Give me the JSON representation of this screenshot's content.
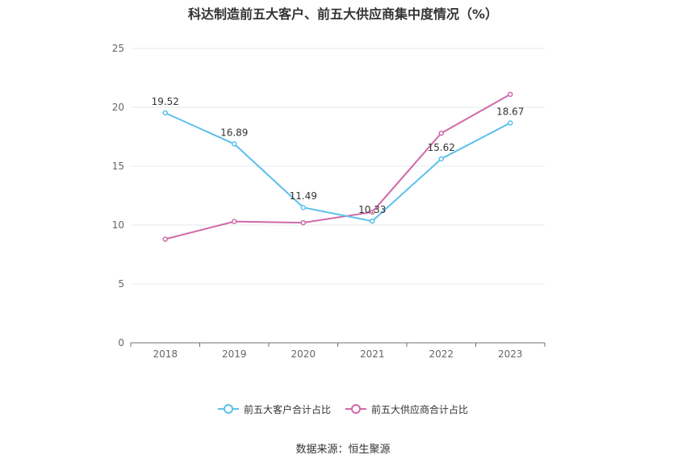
{
  "chart_data": {
    "type": "line",
    "title": "科达制造前五大客户、前五大供应商集中度情况（%）",
    "categories": [
      "2018",
      "2019",
      "2020",
      "2021",
      "2022",
      "2023"
    ],
    "ylim": [
      0,
      25
    ],
    "yticks": [
      0,
      5,
      10,
      15,
      20,
      25
    ],
    "grid": true,
    "legend_position": "bottom",
    "series": [
      {
        "name": "前五大客户合计占比",
        "color": "#5bc0eb",
        "values": [
          19.52,
          16.89,
          11.49,
          10.33,
          15.62,
          18.67
        ],
        "labels": [
          "19.52",
          "16.89",
          "11.49",
          "10.33",
          "15.62",
          "18.67"
        ]
      },
      {
        "name": "前五大供应商合计占比",
        "color": "#d069a8",
        "values": [
          8.8,
          10.3,
          10.2,
          11.1,
          17.8,
          21.1
        ]
      }
    ]
  },
  "source": "数据来源：恒生聚源"
}
